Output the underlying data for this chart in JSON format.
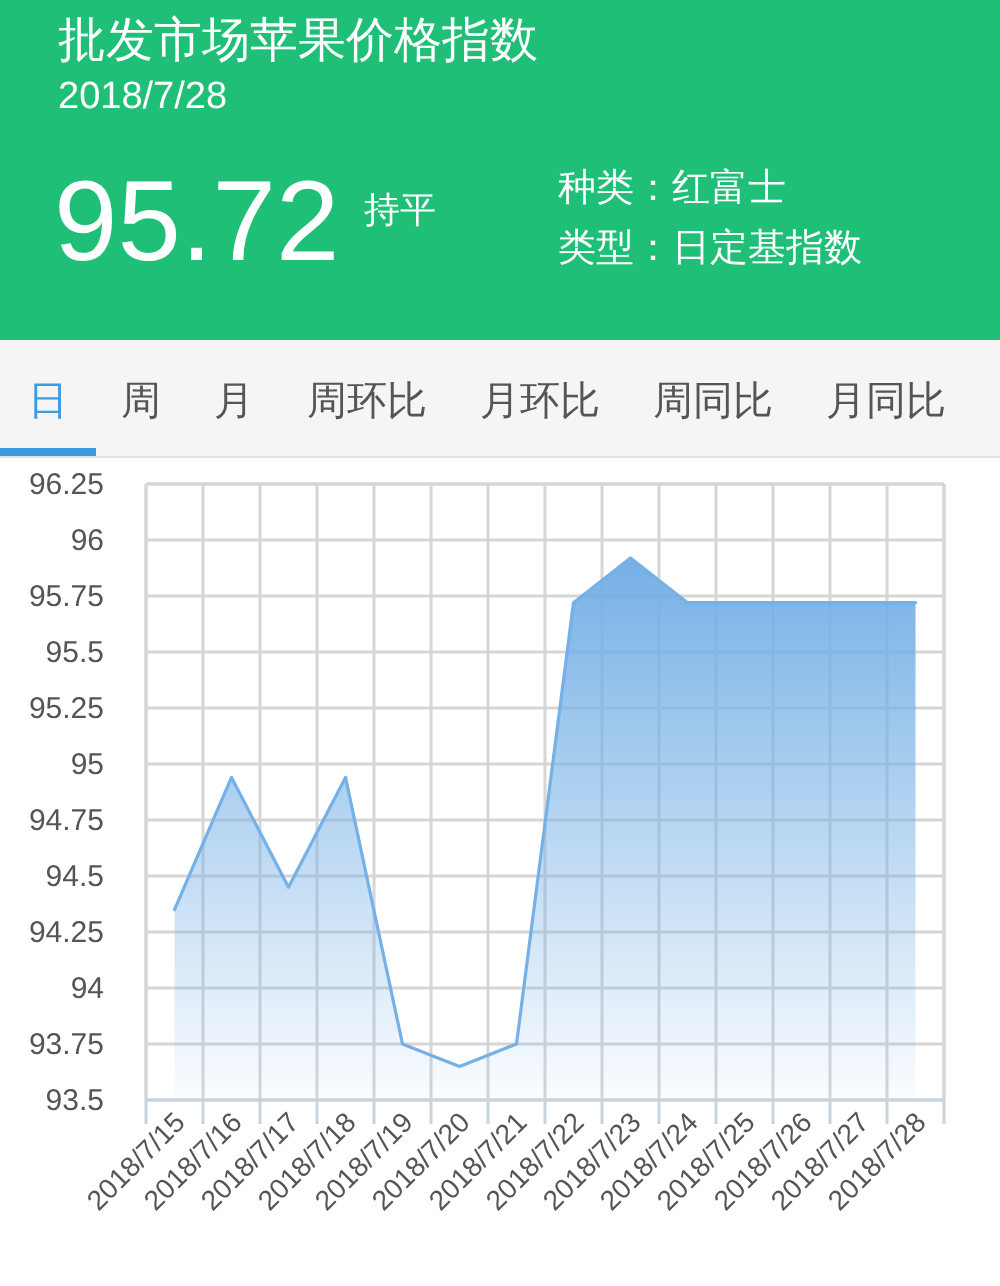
{
  "chart_data": {
    "type": "area",
    "title": "批发市场苹果价格指数",
    "subtitle": "2018/7/28",
    "annotations": [
      "95.72",
      "持平",
      "种类：红富士",
      "类型：日定基指数",
      "日",
      "周",
      "月",
      "周环比",
      "月环比",
      "周同比",
      "月同比"
    ],
    "categories": [
      "2018/7/15",
      "2018/7/16",
      "2018/7/17",
      "2018/7/18",
      "2018/7/19",
      "2018/7/20",
      "2018/7/21",
      "2018/7/22",
      "2018/7/23",
      "2018/7/24",
      "2018/7/25",
      "2018/7/26",
      "2018/7/27",
      "2018/7/28"
    ],
    "series": [
      {
        "color": "#75b0e6",
        "values": [
          94.35,
          94.94,
          94.45,
          94.94,
          93.75,
          93.65,
          93.75,
          95.72,
          95.92,
          95.72,
          95.72,
          95.72,
          95.72,
          95.72
        ]
      }
    ],
    "ylim": [
      93.5,
      96.25
    ],
    "yticks": [
      93.5,
      93.75,
      94,
      94.25,
      94.5,
      94.75,
      95,
      95.25,
      95.5,
      95.75,
      96,
      96.25
    ],
    "grid": true
  }
}
